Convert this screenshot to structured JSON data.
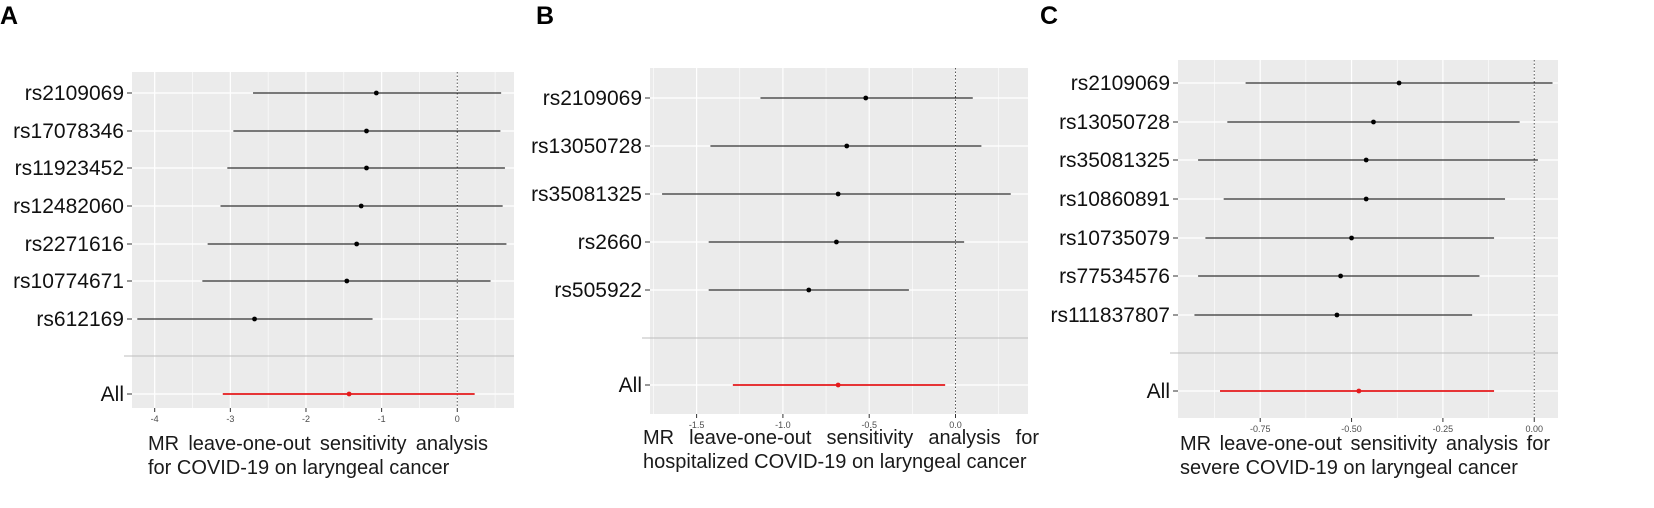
{
  "panels": [
    {
      "letter": "A",
      "caption_line1": "MR leave-one-out sensitivity analysis",
      "caption_line2": "for COVID-19 on laryngeal cancer"
    },
    {
      "letter": "B",
      "caption_line1": "MR leave-one-out sensitivity analysis for",
      "caption_line2": "hospitalized COVID-19 on laryngeal cancer"
    },
    {
      "letter": "C",
      "caption_line1": "MR leave-one-out sensitivity analysis for",
      "caption_line2": "severe COVID-19 on laryngeal cancer"
    }
  ],
  "colors": {
    "panel_background": "#ebebeb",
    "gridline": "#ffffff",
    "snp_estimate": "#000000",
    "overall_estimate": "#e41a1c",
    "reference_line": "#555555"
  },
  "chart_data": [
    {
      "type": "forest",
      "title": "",
      "xlabel": "",
      "ylabel": "",
      "xlim": [
        -4.3,
        0.75
      ],
      "x_ticks": [
        -4,
        -3,
        -2,
        -1,
        0
      ],
      "x_tick_labels": [
        "-4",
        "-3",
        "-2",
        "-1",
        "0"
      ],
      "reference_x": 0,
      "grid": true,
      "rows": [
        {
          "label": "rs2109069",
          "estimate": -1.07,
          "lower": -2.7,
          "upper": 0.58
        },
        {
          "label": "rs17078346",
          "estimate": -1.2,
          "lower": -2.96,
          "upper": 0.57
        },
        {
          "label": "rs11923452",
          "estimate": -1.2,
          "lower": -3.04,
          "upper": 0.63
        },
        {
          "label": "rs12482060",
          "estimate": -1.27,
          "lower": -3.13,
          "upper": 0.6
        },
        {
          "label": "rs2271616",
          "estimate": -1.33,
          "lower": -3.3,
          "upper": 0.65
        },
        {
          "label": "rs10774671",
          "estimate": -1.46,
          "lower": -3.37,
          "upper": 0.44
        },
        {
          "label": "rs612169",
          "estimate": -2.68,
          "lower": -4.23,
          "upper": -1.12
        }
      ],
      "overall": {
        "label": "All",
        "estimate": -1.43,
        "lower": -3.1,
        "upper": 0.23
      }
    },
    {
      "type": "forest",
      "title": "",
      "xlabel": "",
      "ylabel": "",
      "xlim": [
        -1.77,
        0.42
      ],
      "x_ticks": [
        -1.5,
        -1.0,
        -0.5,
        0.0
      ],
      "x_tick_labels": [
        "-1.5",
        "-1.0",
        "-0.5",
        "0.0"
      ],
      "reference_x": 0,
      "grid": true,
      "rows": [
        {
          "label": "rs2109069",
          "estimate": -0.52,
          "lower": -1.13,
          "upper": 0.1
        },
        {
          "label": "rs13050728",
          "estimate": -0.63,
          "lower": -1.42,
          "upper": 0.15
        },
        {
          "label": "rs35081325",
          "estimate": -0.68,
          "lower": -1.7,
          "upper": 0.32
        },
        {
          "label": "rs2660",
          "estimate": -0.69,
          "lower": -1.43,
          "upper": 0.05
        },
        {
          "label": "rs505922",
          "estimate": -0.85,
          "lower": -1.43,
          "upper": -0.27
        }
      ],
      "overall": {
        "label": "All",
        "estimate": -0.68,
        "lower": -1.29,
        "upper": -0.06
      }
    },
    {
      "type": "forest",
      "title": "",
      "xlabel": "",
      "ylabel": "",
      "xlim": [
        -0.975,
        0.065
      ],
      "x_ticks": [
        -0.75,
        -0.5,
        -0.25,
        0.0
      ],
      "x_tick_labels": [
        "-0.75",
        "-0.50",
        "-0.25",
        "0.00"
      ],
      "reference_x": 0,
      "grid": true,
      "rows": [
        {
          "label": "rs2109069",
          "estimate": -0.37,
          "lower": -0.79,
          "upper": 0.05
        },
        {
          "label": "rs13050728",
          "estimate": -0.44,
          "lower": -0.84,
          "upper": -0.04
        },
        {
          "label": "rs35081325",
          "estimate": -0.46,
          "lower": -0.92,
          "upper": 0.01
        },
        {
          "label": "rs10860891",
          "estimate": -0.46,
          "lower": -0.85,
          "upper": -0.08
        },
        {
          "label": "rs10735079",
          "estimate": -0.5,
          "lower": -0.9,
          "upper": -0.11
        },
        {
          "label": "rs77534576",
          "estimate": -0.53,
          "lower": -0.92,
          "upper": -0.15
        },
        {
          "label": "rs111837807",
          "estimate": -0.54,
          "lower": -0.93,
          "upper": -0.17
        }
      ],
      "overall": {
        "label": "All",
        "estimate": -0.48,
        "lower": -0.86,
        "upper": -0.11
      }
    }
  ]
}
